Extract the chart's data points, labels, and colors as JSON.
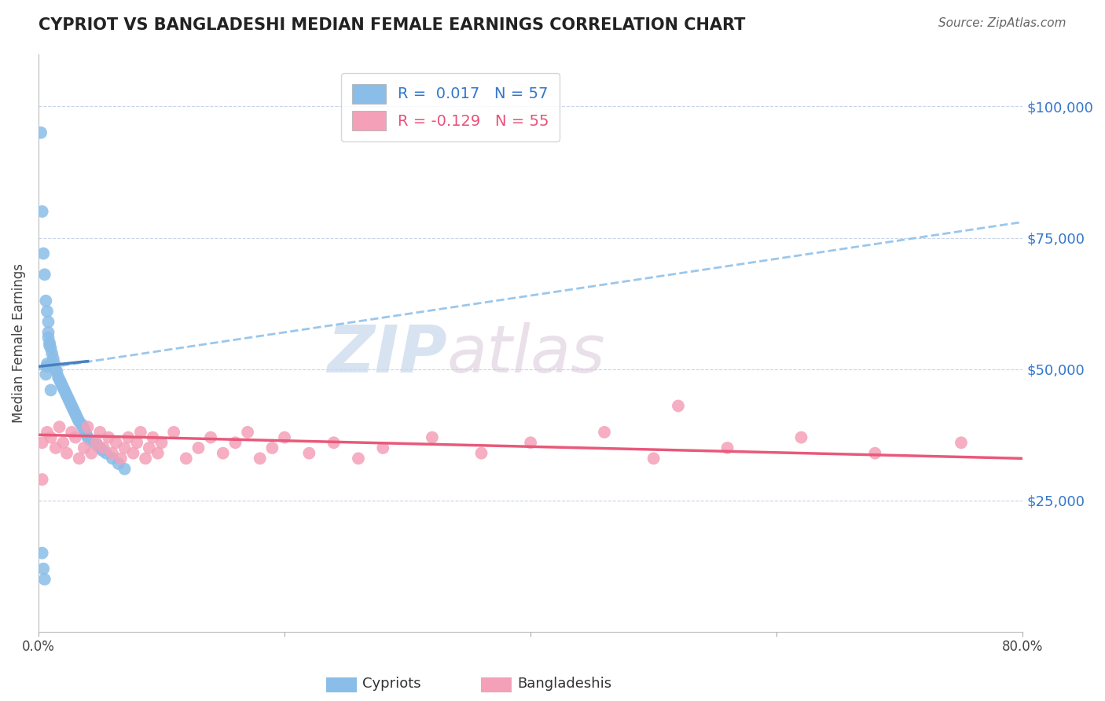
{
  "title": "CYPRIOT VS BANGLADESHI MEDIAN FEMALE EARNINGS CORRELATION CHART",
  "source": "Source: ZipAtlas.com",
  "ylabel": "Median Female Earnings",
  "xlim": [
    0.0,
    0.8
  ],
  "ylim": [
    0,
    110000
  ],
  "yticks": [
    0,
    25000,
    50000,
    75000,
    100000
  ],
  "ytick_labels": [
    "",
    "$25,000",
    "$50,000",
    "$75,000",
    "$100,000"
  ],
  "xticks": [
    0.0,
    0.2,
    0.4,
    0.6,
    0.8
  ],
  "xtick_labels": [
    "0.0%",
    "",
    "",
    "",
    "80.0%"
  ],
  "watermark_zip": "ZIP",
  "watermark_atlas": "atlas",
  "cypriot_color": "#8abde8",
  "bangladeshi_color": "#f4a0b8",
  "trend_cypriot_color": "#8abde8",
  "trend_bangladeshi_color": "#e8597a",
  "background_color": "#ffffff",
  "grid_color": "#c8d4e8",
  "cypriot_x": [
    0.002,
    0.003,
    0.004,
    0.005,
    0.006,
    0.007,
    0.008,
    0.009,
    0.01,
    0.011,
    0.012,
    0.013,
    0.014,
    0.015,
    0.016,
    0.017,
    0.018,
    0.019,
    0.02,
    0.021,
    0.022,
    0.023,
    0.024,
    0.025,
    0.026,
    0.027,
    0.028,
    0.029,
    0.03,
    0.031,
    0.032,
    0.033,
    0.035,
    0.036,
    0.037,
    0.038,
    0.039,
    0.04,
    0.042,
    0.045,
    0.048,
    0.05,
    0.052,
    0.055,
    0.06,
    0.065,
    0.07,
    0.003,
    0.004,
    0.005,
    0.006,
    0.007,
    0.007,
    0.008,
    0.008,
    0.009,
    0.01
  ],
  "cypriot_y": [
    95000,
    80000,
    72000,
    68000,
    63000,
    61000,
    57000,
    55000,
    54000,
    53000,
    52000,
    51000,
    50000,
    49500,
    48500,
    48000,
    47500,
    47000,
    46500,
    46000,
    45500,
    45000,
    44500,
    44000,
    43500,
    43000,
    42500,
    42000,
    41500,
    41000,
    40500,
    40000,
    39500,
    39000,
    38500,
    38000,
    37500,
    37000,
    36500,
    36000,
    35500,
    35000,
    34500,
    34000,
    33000,
    32000,
    31000,
    15000,
    12000,
    10000,
    49000,
    50500,
    51000,
    56000,
    59000,
    54500,
    46000
  ],
  "bangladeshi_x": [
    0.003,
    0.007,
    0.01,
    0.014,
    0.017,
    0.02,
    0.023,
    0.027,
    0.03,
    0.033,
    0.037,
    0.04,
    0.043,
    0.047,
    0.05,
    0.053,
    0.057,
    0.06,
    0.063,
    0.067,
    0.07,
    0.073,
    0.077,
    0.08,
    0.083,
    0.087,
    0.09,
    0.093,
    0.097,
    0.1,
    0.11,
    0.12,
    0.13,
    0.14,
    0.15,
    0.16,
    0.17,
    0.18,
    0.19,
    0.2,
    0.22,
    0.24,
    0.26,
    0.28,
    0.32,
    0.36,
    0.4,
    0.46,
    0.5,
    0.52,
    0.56,
    0.62,
    0.68,
    0.75,
    0.003
  ],
  "bangladeshi_y": [
    36000,
    38000,
    37000,
    35000,
    39000,
    36000,
    34000,
    38000,
    37000,
    33000,
    35000,
    39000,
    34000,
    36000,
    38000,
    35000,
    37000,
    34000,
    36000,
    33000,
    35000,
    37000,
    34000,
    36000,
    38000,
    33000,
    35000,
    37000,
    34000,
    36000,
    38000,
    33000,
    35000,
    37000,
    34000,
    36000,
    38000,
    33000,
    35000,
    37000,
    34000,
    36000,
    33000,
    35000,
    37000,
    34000,
    36000,
    38000,
    33000,
    43000,
    35000,
    37000,
    34000,
    36000,
    29000
  ]
}
